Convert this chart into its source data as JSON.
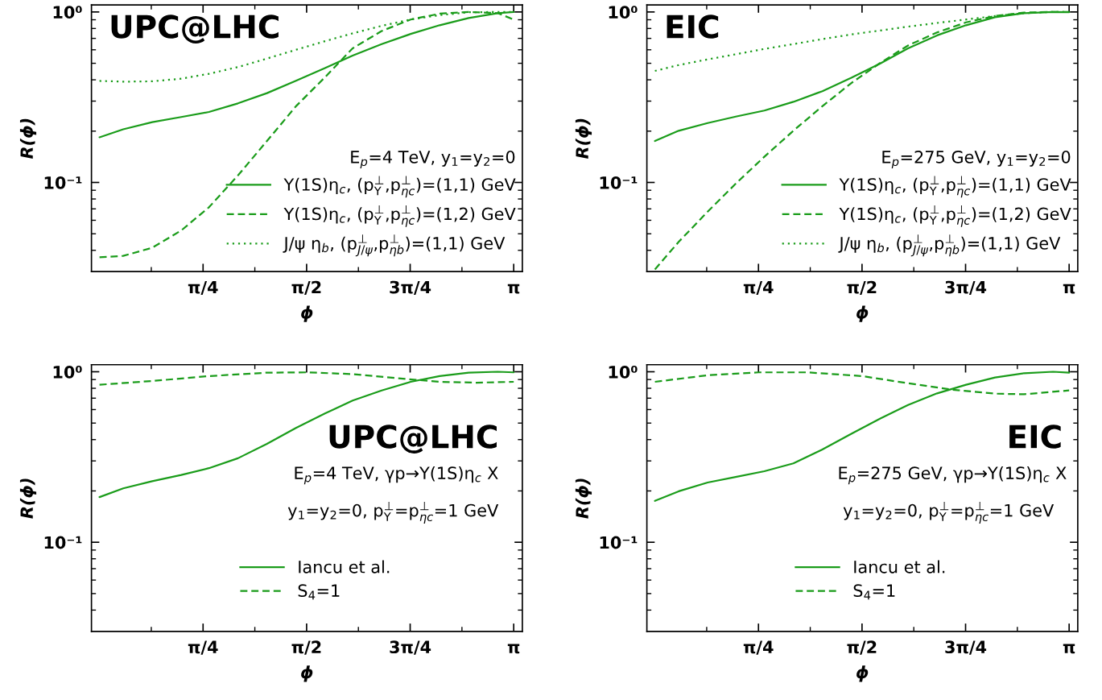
{
  "chart_data": [
    {
      "type": "line",
      "xlabel": "ϕ",
      "ylabel": "R(ϕ)",
      "log": "y",
      "legend": "bottom right",
      "legend_title": "E$_{p}$=4 TeV, y$_{1}$=y$_{2}$=0",
      "xlim": [
        -0.061,
        3.207
      ],
      "xticks": [
        {
          "value": 0.3927,
          "label": null
        },
        {
          "value": 0.7854,
          "label": "π/4"
        },
        {
          "value": 1.1781,
          "label": null
        },
        {
          "value": 1.5708,
          "label": "π/2"
        },
        {
          "value": 1.9635,
          "label": null
        },
        {
          "value": 2.3562,
          "label": "3π/4"
        },
        {
          "value": 2.7489,
          "label": null
        },
        {
          "value": 3.1416,
          "label": "π"
        }
      ],
      "ylim": [
        0.03,
        1.1
      ],
      "yticks": [
        {
          "value": 0.04,
          "label": null
        },
        {
          "value": 0.05,
          "label": null
        },
        {
          "value": 0.06,
          "label": null
        },
        {
          "value": 0.07,
          "label": null
        },
        {
          "value": 0.08,
          "label": null
        },
        {
          "value": 0.09,
          "label": null
        },
        {
          "value": 0.1,
          "label": "10⁻¹"
        },
        {
          "value": 0.2,
          "label": null
        },
        {
          "value": 0.3,
          "label": null
        },
        {
          "value": 0.4,
          "label": null
        },
        {
          "value": 0.5,
          "label": null
        },
        {
          "value": 0.6,
          "label": null
        },
        {
          "value": 0.7,
          "label": null
        },
        {
          "value": 0.8,
          "label": null
        },
        {
          "value": 0.9,
          "label": null
        },
        {
          "value": 1,
          "label": "10⁰"
        }
      ],
      "annotations": [
        "UPC@LHC"
      ],
      "series": [
        {
          "name": "Υ(1S)η$_{c}$, (p$^{⊥}$$_{Υ}$,p$^{⊥}$$_{ηc}$)=(1,1) GeV",
          "color": "#1a9c1a",
          "line_style": "solid",
          "x": [
            0,
            0.18,
            0.4,
            0.62,
            0.83,
            1.05,
            1.27,
            1.49,
            1.71,
            1.92,
            2.14,
            2.36,
            2.58,
            2.8,
            3.02,
            3.1416
          ],
          "values": [
            0.184,
            0.205,
            0.226,
            0.242,
            0.259,
            0.291,
            0.334,
            0.395,
            0.469,
            0.555,
            0.648,
            0.743,
            0.836,
            0.921,
            0.984,
            1.0
          ]
        },
        {
          "name": "Υ(1S)η$_{c}$, (p$^{⊥}$$_{Υ}$,p$^{⊥}$$_{ηc}$)=(1,2) GeV",
          "color": "#1a9c1a",
          "line_style": "dashed",
          "x": [
            0,
            0.18,
            0.4,
            0.62,
            0.83,
            1.05,
            1.27,
            1.49,
            1.71,
            1.92,
            2.14,
            2.36,
            2.58,
            2.8,
            3.02,
            3.1416
          ],
          "values": [
            0.0364,
            0.0371,
            0.0414,
            0.0523,
            0.0715,
            0.11,
            0.175,
            0.28,
            0.414,
            0.612,
            0.773,
            0.903,
            0.977,
            1.0,
            0.984,
            0.903
          ]
        },
        {
          "name": "J/ψ η$_{b}$, (p$^{⊥}$$_{J/ψ}$,p$^{⊥}$$_{ηb}$)=(1,1) GeV",
          "color": "#1a9c1a",
          "line_style": "dotted",
          "x": [
            0,
            0.18,
            0.4,
            0.62,
            0.83,
            1.05,
            1.27,
            1.49,
            1.71,
            1.92,
            2.14,
            2.36,
            2.58,
            2.8,
            3.02,
            3.1416
          ],
          "values": [
            0.394,
            0.39,
            0.392,
            0.406,
            0.434,
            0.475,
            0.533,
            0.6,
            0.674,
            0.749,
            0.829,
            0.903,
            0.958,
            0.996,
            1.0,
            1.0
          ]
        }
      ]
    },
    {
      "type": "line",
      "xlabel": "ϕ",
      "ylabel": "R(ϕ)",
      "log": "y",
      "legend": "bottom right",
      "legend_title": "E$_{p}$=275 GeV, y$_{1}$=y$_{2}$=0",
      "xlim": [
        -0.061,
        3.207
      ],
      "xticks": [
        {
          "value": 0.3927,
          "label": null
        },
        {
          "value": 0.7854,
          "label": "π/4"
        },
        {
          "value": 1.1781,
          "label": null
        },
        {
          "value": 1.5708,
          "label": "π/2"
        },
        {
          "value": 1.9635,
          "label": null
        },
        {
          "value": 2.3562,
          "label": "3π/4"
        },
        {
          "value": 2.7489,
          "label": null
        },
        {
          "value": 3.1416,
          "label": "π"
        }
      ],
      "ylim": [
        0.03,
        1.1
      ],
      "yticks": [
        {
          "value": 0.04,
          "label": null
        },
        {
          "value": 0.05,
          "label": null
        },
        {
          "value": 0.06,
          "label": null
        },
        {
          "value": 0.07,
          "label": null
        },
        {
          "value": 0.08,
          "label": null
        },
        {
          "value": 0.09,
          "label": null
        },
        {
          "value": 0.1,
          "label": "10⁻¹"
        },
        {
          "value": 0.2,
          "label": null
        },
        {
          "value": 0.3,
          "label": null
        },
        {
          "value": 0.4,
          "label": null
        },
        {
          "value": 0.5,
          "label": null
        },
        {
          "value": 0.6,
          "label": null
        },
        {
          "value": 0.7,
          "label": null
        },
        {
          "value": 0.8,
          "label": null
        },
        {
          "value": 0.9,
          "label": null
        },
        {
          "value": 1,
          "label": "10⁰"
        }
      ],
      "annotations": [
        "EIC"
      ],
      "series": [
        {
          "name": "Υ(1S)η$_{c}$, (p$^{⊥}$$_{Υ}$,p$^{⊥}$$_{ηc}$)=(1,1) GeV",
          "color": "#1a9c1a",
          "line_style": "solid",
          "x": [
            0,
            0.18,
            0.4,
            0.62,
            0.83,
            1.05,
            1.27,
            1.49,
            1.71,
            1.92,
            2.14,
            2.36,
            2.58,
            2.8,
            3.02,
            3.1416
          ],
          "values": [
            0.175,
            0.201,
            0.223,
            0.244,
            0.264,
            0.297,
            0.343,
            0.411,
            0.499,
            0.612,
            0.729,
            0.836,
            0.932,
            0.984,
            1.0,
            0.996
          ]
        },
        {
          "name": "Υ(1S)η$_{c}$, (p$^{⊥}$$_{Υ}$,p$^{⊥}$$_{ηc}$)=(1,2) GeV",
          "color": "#1a9c1a",
          "line_style": "dashed",
          "x": [
            0,
            0.18,
            0.4,
            0.62,
            0.83,
            1.05,
            1.27,
            1.49,
            1.71,
            1.92,
            2.14,
            2.36,
            2.58,
            2.8,
            3.02,
            3.1416
          ],
          "values": [
            0.0309,
            0.0448,
            0.0674,
            0.0996,
            0.1415,
            0.201,
            0.28,
            0.383,
            0.503,
            0.636,
            0.758,
            0.869,
            0.947,
            0.992,
            1.0,
            1.0
          ]
        },
        {
          "name": "J/ψ η$_{b}$, (p$^{⊥}$$_{J/ψ}$,p$^{⊥}$$_{ηb}$)=(1,1) GeV",
          "color": "#1a9c1a",
          "line_style": "dotted",
          "x": [
            0,
            0.18,
            0.4,
            0.62,
            0.83,
            1.05,
            1.27,
            1.49,
            1.71,
            1.92,
            2.14,
            2.36,
            2.58,
            2.8,
            3.02,
            3.1416
          ],
          "values": [
            0.451,
            0.488,
            0.527,
            0.566,
            0.607,
            0.648,
            0.693,
            0.738,
            0.779,
            0.82,
            0.862,
            0.903,
            0.947,
            0.984,
            1.0,
            1.0
          ]
        }
      ]
    },
    {
      "type": "line",
      "xlabel": "ϕ",
      "ylabel": "R(ϕ)",
      "log": "y",
      "legend": "bottom",
      "xlim": [
        -0.061,
        3.207
      ],
      "xticks": [
        {
          "value": 0.3927,
          "label": null
        },
        {
          "value": 0.7854,
          "label": "π/4"
        },
        {
          "value": 1.1781,
          "label": null
        },
        {
          "value": 1.5708,
          "label": "π/2"
        },
        {
          "value": 1.9635,
          "label": null
        },
        {
          "value": 2.3562,
          "label": "3π/4"
        },
        {
          "value": 2.7489,
          "label": null
        },
        {
          "value": 3.1416,
          "label": "π"
        }
      ],
      "ylim": [
        0.03,
        1.1
      ],
      "yticks": [
        {
          "value": 0.04,
          "label": null
        },
        {
          "value": 0.05,
          "label": null
        },
        {
          "value": 0.06,
          "label": null
        },
        {
          "value": 0.07,
          "label": null
        },
        {
          "value": 0.08,
          "label": null
        },
        {
          "value": 0.09,
          "label": null
        },
        {
          "value": 0.1,
          "label": "10⁻¹"
        },
        {
          "value": 0.2,
          "label": null
        },
        {
          "value": 0.3,
          "label": null
        },
        {
          "value": 0.4,
          "label": null
        },
        {
          "value": 0.5,
          "label": null
        },
        {
          "value": 0.6,
          "label": null
        },
        {
          "value": 0.7,
          "label": null
        },
        {
          "value": 0.8,
          "label": null
        },
        {
          "value": 0.9,
          "label": null
        },
        {
          "value": 1,
          "label": "10⁰"
        }
      ],
      "annotations": [
        "UPC@LHC",
        "E$_{p}$=4 TeV, γp→Υ(1S)η$_{c}$ X",
        "y$_{1}$=y$_{2}$=0, p$^{⊥}$$_{Υ}$=p$^{⊥}$$_{ηc}$=1 GeV"
      ],
      "series": [
        {
          "name": "Iancu et al.",
          "color": "#1a9c1a",
          "line_style": "solid",
          "x": [
            0,
            0.18,
            0.4,
            0.62,
            0.83,
            1.05,
            1.27,
            1.49,
            1.71,
            1.92,
            2.14,
            2.36,
            2.58,
            2.8,
            3.02,
            3.1416
          ],
          "values": [
            0.184,
            0.207,
            0.228,
            0.248,
            0.272,
            0.311,
            0.378,
            0.468,
            0.569,
            0.678,
            0.777,
            0.873,
            0.943,
            0.988,
            1.0,
            0.992
          ]
        },
        {
          "name": "S$_{4}$=1",
          "color": "#1a9c1a",
          "line_style": "dashed",
          "x": [
            0,
            0.4,
            0.83,
            1.27,
            1.571,
            1.92,
            2.25,
            2.58,
            2.86,
            3.1416
          ],
          "values": [
            0.839,
            0.883,
            0.943,
            0.988,
            0.992,
            0.969,
            0.918,
            0.873,
            0.863,
            0.873
          ]
        }
      ]
    },
    {
      "type": "line",
      "xlabel": "ϕ",
      "ylabel": "R(ϕ)",
      "log": "y",
      "legend": "bottom",
      "xlim": [
        -0.061,
        3.207
      ],
      "xticks": [
        {
          "value": 0.3927,
          "label": null
        },
        {
          "value": 0.7854,
          "label": "π/4"
        },
        {
          "value": 1.1781,
          "label": null
        },
        {
          "value": 1.5708,
          "label": "π/2"
        },
        {
          "value": 1.9635,
          "label": null
        },
        {
          "value": 2.3562,
          "label": "3π/4"
        },
        {
          "value": 2.7489,
          "label": null
        },
        {
          "value": 3.1416,
          "label": "π"
        }
      ],
      "ylim": [
        0.03,
        1.1
      ],
      "yticks": [
        {
          "value": 0.04,
          "label": null
        },
        {
          "value": 0.05,
          "label": null
        },
        {
          "value": 0.06,
          "label": null
        },
        {
          "value": 0.07,
          "label": null
        },
        {
          "value": 0.08,
          "label": null
        },
        {
          "value": 0.09,
          "label": null
        },
        {
          "value": 0.1,
          "label": "10⁻¹"
        },
        {
          "value": 0.2,
          "label": null
        },
        {
          "value": 0.3,
          "label": null
        },
        {
          "value": 0.4,
          "label": null
        },
        {
          "value": 0.5,
          "label": null
        },
        {
          "value": 0.6,
          "label": null
        },
        {
          "value": 0.7,
          "label": null
        },
        {
          "value": 0.8,
          "label": null
        },
        {
          "value": 0.9,
          "label": null
        },
        {
          "value": 1,
          "label": "10⁰"
        }
      ],
      "annotations": [
        "EIC",
        "E$_{p}$=275 GeV, γp→Υ(1S)η$_{c}$ X",
        "y$_{1}$=y$_{2}$=0, p$^{⊥}$$_{Υ}$=p$^{⊥}$$_{ηc}$=1 GeV"
      ],
      "series": [
        {
          "name": "Iancu et al.",
          "color": "#1a9c1a",
          "line_style": "solid",
          "x": [
            0,
            0.18,
            0.4,
            0.62,
            0.83,
            1.05,
            1.27,
            1.49,
            1.71,
            1.92,
            2.14,
            2.36,
            2.58,
            2.8,
            3.02,
            3.1416
          ],
          "values": [
            0.175,
            0.199,
            0.224,
            0.242,
            0.261,
            0.29,
            0.35,
            0.433,
            0.532,
            0.639,
            0.747,
            0.839,
            0.925,
            0.981,
            1.0,
            0.988
          ]
        },
        {
          "name": "S$_{4}$=1",
          "color": "#1a9c1a",
          "line_style": "dashed",
          "x": [
            0,
            0.4,
            0.785,
            1.16,
            1.571,
            1.92,
            2.25,
            2.58,
            2.8,
            3.1416
          ],
          "values": [
            0.873,
            0.954,
            0.992,
            0.992,
            0.943,
            0.856,
            0.786,
            0.744,
            0.738,
            0.777
          ]
        }
      ]
    }
  ]
}
